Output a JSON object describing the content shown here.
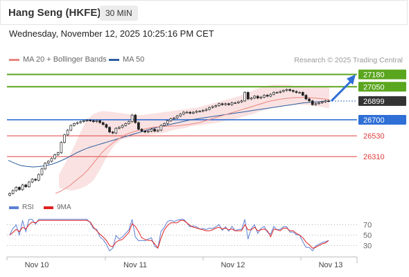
{
  "header": {
    "title": "Hang Seng (HKFE)",
    "interval": "30 MIN"
  },
  "datetime": "Wednesday, November 12, 2025 10:25:16 PM CET",
  "legend": {
    "ma20": {
      "label": "MA 20 + Bollinger Bands",
      "color": "#e8857f"
    },
    "ma50": {
      "label": "MA 50",
      "color": "#2c5e9e"
    }
  },
  "credit": "Research © 2025 Trading Central",
  "indicator_legend": {
    "rsi": {
      "label": "RSI",
      "color": "#5b7fd6"
    },
    "ma9": {
      "label": "9MA",
      "color": "#e02020"
    }
  },
  "chart_data": {
    "type": "candlestick",
    "x_labels": [
      "Nov 10",
      "Nov 11",
      "Nov 12",
      "Nov 13"
    ],
    "ylim": [
      25900,
      27250
    ],
    "levels": [
      {
        "value": 27180,
        "label": "27180",
        "kind": "resistance",
        "color": "#5aa61e"
      },
      {
        "value": 27050,
        "label": "27050",
        "kind": "resistance",
        "color": "#5aa61e"
      },
      {
        "value": 26899,
        "label": "26899",
        "kind": "last",
        "color": "#333333"
      },
      {
        "value": 26700,
        "label": "26700",
        "kind": "pivot",
        "color": "#2f6fd6"
      },
      {
        "value": 26530,
        "label": "26530",
        "kind": "support",
        "color": "#e03c3c"
      },
      {
        "value": 26310,
        "label": "26310",
        "kind": "support",
        "color": "#e03c3c"
      }
    ],
    "close": [
      25920,
      25950,
      25985,
      25960,
      26010,
      25990,
      26040,
      26070,
      26060,
      26120,
      26180,
      26240,
      26260,
      26290,
      26330,
      26350,
      26460,
      26540,
      26590,
      26640,
      26660,
      26670,
      26680,
      26690,
      26695,
      26690,
      26680,
      26690,
      26670,
      26650,
      26620,
      26570,
      26560,
      26610,
      26620,
      26640,
      26660,
      26680,
      26750,
      26670,
      26600,
      26580,
      26570,
      26580,
      26600,
      26580,
      26590,
      26640,
      26660,
      26690,
      26710,
      26720,
      26740,
      26760,
      26780,
      26780,
      26770,
      26780,
      26790,
      26790,
      26800,
      26810,
      26830,
      26840,
      26850,
      26870,
      26860,
      26870,
      26860,
      26880,
      26880,
      26890,
      26900,
      26990,
      26920,
      26930,
      26950,
      26930,
      26940,
      26960,
      26950,
      26970,
      26990,
      26990,
      27000,
      27010,
      27020,
      27010,
      27000,
      26990,
      26990,
      26960,
      26920,
      26900,
      26860,
      26870,
      26880,
      26890,
      26900,
      26899
    ],
    "ma20": [
      25920,
      25940,
      25970,
      26000,
      26040,
      26080,
      26120,
      26170,
      26230,
      26290,
      26350,
      26400,
      26440,
      26480,
      26510,
      26540,
      26560,
      26575,
      26590,
      26600,
      26610,
      26620,
      26625,
      26630,
      26632,
      26634,
      26636,
      26640,
      26646,
      26652,
      26660,
      26670,
      26685,
      26700,
      26715,
      26730,
      26745,
      26760,
      26775,
      26790,
      26805,
      26820,
      26835,
      26850,
      26865,
      26880,
      26895,
      26905,
      26915,
      26922,
      26928,
      26932,
      26935,
      26937,
      26937,
      26934,
      26930,
      26925,
      26920,
      26915
    ],
    "bollinger_upper": [
      26120,
      26250,
      26390,
      26550,
      26700,
      26760,
      26790,
      26790,
      26780,
      26770,
      26760,
      26750,
      26750,
      26760,
      26770,
      26780,
      26790,
      26800,
      26810,
      26820,
      26830,
      26850,
      26870,
      26890,
      26910,
      26930,
      26950,
      26980,
      27010,
      27040,
      27060,
      27070,
      27070,
      27070,
      27060,
      27060,
      27060,
      27050,
      27050,
      27040
    ],
    "bollinger_lower": [
      25980,
      25960,
      25950,
      25970,
      26000,
      26060,
      26180,
      26320,
      26430,
      26490,
      26510,
      26530,
      26530,
      26540,
      26550,
      26560,
      26580,
      26600,
      26610,
      26630,
      26640,
      26650,
      26660,
      26670,
      26690,
      26700,
      26720,
      26740,
      26760,
      26790,
      26810,
      26830,
      26840,
      26850,
      26860,
      26860,
      26855,
      26845,
      26835,
      26820
    ],
    "ma50": [
      26270,
      26240,
      26215,
      26205,
      26200,
      26205,
      26215,
      26230,
      26255,
      26285,
      26320,
      26355,
      26385,
      26410,
      26430,
      26450,
      26470,
      26490,
      26510,
      26530,
      26550,
      26570,
      26590,
      26610,
      26625,
      26640,
      26655,
      26670,
      26685,
      26700,
      26710,
      26720,
      26730,
      26740,
      26750,
      26760,
      26770,
      26780,
      26790,
      26800,
      26810,
      26820,
      26830,
      26840,
      26850,
      26860,
      26870,
      26880,
      26885,
      26890,
      26895,
      26899
    ],
    "projection_to": 27180,
    "rsi": {
      "levels": [
        70,
        50,
        30
      ],
      "ylim": [
        15,
        85
      ]
    }
  }
}
